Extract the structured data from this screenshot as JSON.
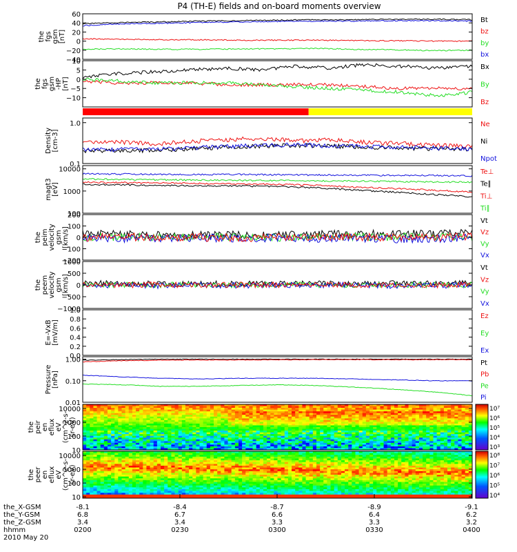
{
  "title": "P4 (TH-E) fields and on-board moments overview",
  "colors": {
    "black": "#000000",
    "red": "#ee1111",
    "green": "#22dd22",
    "blue": "#1111dd",
    "bar_red": "#ff0000",
    "bar_yellow": "#ffff00"
  },
  "panels": [
    {
      "id": "fgs_gsm",
      "ylabel": [
        "the",
        "fgs",
        "gsm",
        "[nT]"
      ],
      "scale": "linear",
      "ylim": [
        -40,
        60
      ],
      "ticks": [
        60,
        40,
        20,
        0,
        -20,
        -40
      ],
      "tick_labels": [
        "60",
        "40",
        "20",
        "0",
        "−20",
        "−40"
      ],
      "legend": [
        {
          "label": "Bt",
          "color": "black"
        },
        {
          "label": "bz",
          "color": "red"
        },
        {
          "label": "by",
          "color": "green"
        },
        {
          "label": "bx",
          "color": "blue"
        }
      ],
      "series": [
        {
          "color": "black",
          "values": [
            38,
            41,
            42,
            44,
            45,
            46,
            47,
            47,
            48,
            48,
            47
          ]
        },
        {
          "color": "blue",
          "values": [
            34,
            38,
            39,
            41,
            42,
            43,
            44,
            44,
            45,
            45,
            44
          ]
        },
        {
          "color": "red",
          "values": [
            5,
            4,
            3,
            3,
            2,
            2,
            2,
            1,
            1,
            0,
            0
          ]
        },
        {
          "color": "green",
          "values": [
            -18,
            -17,
            -18,
            -18,
            -17,
            -17,
            -16,
            -18,
            -19,
            -21,
            -20
          ]
        }
      ]
    },
    {
      "id": "fgs_gsm_hp",
      "ylabel": [
        "the",
        "fgs",
        "gsm",
        "-HP",
        "[nT]"
      ],
      "scale": "linear",
      "ylim": [
        -15,
        10
      ],
      "ticks": [
        10,
        5,
        0,
        -5,
        -10
      ],
      "tick_labels": [
        "10",
        "5",
        "0",
        "−5",
        "−10"
      ],
      "legend": [
        {
          "label": "Bx",
          "color": "black"
        },
        {
          "label": "By",
          "color": "green"
        },
        {
          "label": "Bz",
          "color": "red"
        }
      ],
      "series": [
        {
          "color": "black",
          "values": [
            1,
            3,
            4,
            5,
            6,
            5,
            7,
            6,
            8,
            7,
            6,
            7
          ]
        },
        {
          "color": "red",
          "values": [
            -1,
            -2,
            -2,
            -2,
            -3,
            -3,
            -3,
            -3,
            -4,
            -5,
            -5,
            -5
          ]
        },
        {
          "color": "green",
          "values": [
            0,
            -1,
            -2,
            -2,
            -2,
            -3,
            -4,
            -5,
            -6,
            -7,
            -9,
            -7
          ]
        }
      ]
    },
    {
      "id": "mode_bar",
      "segments": [
        {
          "from": 0.0,
          "to": 0.58,
          "color": "bar_red"
        },
        {
          "from": 0.58,
          "to": 1.0,
          "color": "bar_yellow"
        }
      ]
    },
    {
      "id": "density",
      "ylabel": [
        "Density",
        "[cm-3]"
      ],
      "scale": "log",
      "ylim": [
        0.1,
        1.3
      ],
      "ticks": [
        1.0,
        0.1
      ],
      "tick_labels": [
        "1.0",
        "0.1"
      ],
      "legend": [
        {
          "label": "Ne",
          "color": "red"
        },
        {
          "label": "Ni",
          "color": "black"
        },
        {
          "label": "Npot",
          "color": "blue"
        }
      ],
      "series": [
        {
          "color": "red",
          "values": [
            0.35,
            0.34,
            0.3,
            0.35,
            0.38,
            0.42,
            0.36,
            0.38,
            0.33,
            0.31,
            0.28,
            0.26
          ]
        },
        {
          "color": "black",
          "values": [
            0.2,
            0.21,
            0.21,
            0.23,
            0.25,
            0.27,
            0.28,
            0.27,
            0.25,
            0.24,
            0.23,
            0.22
          ]
        },
        {
          "color": "blue",
          "values": [
            0.22,
            0.22,
            0.23,
            0.24,
            0.26,
            0.28,
            0.29,
            0.27,
            0.26,
            0.25,
            0.24,
            0.23
          ]
        }
      ]
    },
    {
      "id": "magt3",
      "ylabel": [
        "magt3",
        "[eV]"
      ],
      "scale": "log",
      "ylim": [
        100,
        14000
      ],
      "ticks": [
        10000,
        1000,
        100
      ],
      "tick_labels": [
        "10000",
        "1000",
        "100"
      ],
      "legend": [
        {
          "label": "Te⊥",
          "color": "red"
        },
        {
          "label": "Te∥",
          "color": "black"
        },
        {
          "label": "Ti⊥",
          "color": "red"
        },
        {
          "label": "Ti∥",
          "color": "green"
        }
      ],
      "series": [
        {
          "color": "blue",
          "values": [
            6000,
            5800,
            5700,
            5500,
            5600,
            5400,
            5300,
            5200,
            5100,
            5000,
            4800
          ]
        },
        {
          "color": "green",
          "values": [
            3500,
            3300,
            3200,
            3100,
            3000,
            3000,
            2900,
            2800,
            2700,
            2600,
            2500
          ]
        },
        {
          "color": "red",
          "values": [
            2500,
            2400,
            2300,
            2200,
            2100,
            2000,
            1800,
            1500,
            1300,
            1100,
            900
          ]
        },
        {
          "color": "black",
          "values": [
            2000,
            1900,
            1800,
            1700,
            1700,
            1600,
            1400,
            1100,
            900,
            700,
            550
          ]
        }
      ]
    },
    {
      "id": "peim_velocity",
      "ylabel": [
        "the",
        "peim",
        "velocity",
        "gsm",
        "[km/s]"
      ],
      "scale": "linear",
      "ylim": [
        -200,
        200
      ],
      "ticks": [
        200,
        100,
        0,
        -100,
        -200
      ],
      "tick_labels": [
        "200",
        "100",
        "0",
        "−100",
        "−200"
      ],
      "legend": [
        {
          "label": "Vt",
          "color": "black"
        },
        {
          "label": "Vz",
          "color": "red"
        },
        {
          "label": "Vy",
          "color": "green"
        },
        {
          "label": "Vx",
          "color": "blue"
        }
      ],
      "series": [
        {
          "color": "black",
          "values": [
            30,
            25,
            20,
            20,
            25,
            20,
            25,
            30,
            35,
            30,
            40
          ]
        },
        {
          "color": "green",
          "values": [
            5,
            0,
            5,
            0,
            5,
            0,
            0,
            5,
            0,
            5,
            0
          ]
        },
        {
          "color": "blue",
          "values": [
            -5,
            -10,
            -5,
            -5,
            -10,
            -5,
            -10,
            -5,
            -15,
            -10,
            -5
          ]
        },
        {
          "color": "red",
          "values": [
            0,
            5,
            0,
            0,
            -5,
            0,
            5,
            0,
            0,
            0,
            5
          ]
        }
      ]
    },
    {
      "id": "peem_velocity",
      "ylabel": [
        "the",
        "peem",
        "velocity",
        "gsm",
        "[km/s]"
      ],
      "scale": "linear",
      "ylim": [
        -1000,
        1000
      ],
      "ticks": [
        1000,
        500,
        0,
        -500,
        -1000
      ],
      "tick_labels": [
        "1000",
        "500",
        "0",
        "−500",
        "−1000"
      ],
      "legend": [
        {
          "label": "Vt",
          "color": "black"
        },
        {
          "label": "Vz",
          "color": "red"
        },
        {
          "label": "Vy",
          "color": "green"
        },
        {
          "label": "Vx",
          "color": "blue"
        }
      ],
      "series": [
        {
          "color": "black",
          "values": [
            80,
            60,
            50,
            50,
            60,
            50,
            70,
            60,
            70,
            60,
            80
          ]
        },
        {
          "color": "green",
          "values": [
            0,
            10,
            0,
            10,
            0,
            10,
            0,
            10,
            0,
            10,
            0
          ]
        },
        {
          "color": "blue",
          "values": [
            -20,
            -10,
            -30,
            -10,
            -20,
            -10,
            -20,
            -10,
            -30,
            -20,
            -10
          ]
        },
        {
          "color": "red",
          "values": [
            10,
            0,
            10,
            0,
            10,
            0,
            10,
            0,
            10,
            0,
            10
          ]
        }
      ]
    },
    {
      "id": "efield",
      "ylabel": [
        "E=-VxB",
        "[mV/m]"
      ],
      "scale": "linear",
      "ylim": [
        0,
        1.0
      ],
      "ticks": [
        1.0,
        0.8,
        0.6,
        0.4,
        0.2,
        0.0
      ],
      "tick_labels": [
        "1.0",
        "0.8",
        "0.6",
        "0.4",
        "0.2",
        "0.0"
      ],
      "legend": [
        {
          "label": "Ez",
          "color": "red"
        },
        {
          "label": "Ey",
          "color": "green"
        },
        {
          "label": "Ex",
          "color": "blue"
        }
      ],
      "series": []
    },
    {
      "id": "pressure",
      "ylabel": [
        "Pressure",
        "[nPa]"
      ],
      "scale": "log",
      "ylim": [
        0.01,
        1.3
      ],
      "ticks": [
        1.0,
        0.1,
        0.01
      ],
      "tick_labels": [
        "1.00",
        "0.10",
        "0.01"
      ],
      "legend": [
        {
          "label": "Pt",
          "color": "black"
        },
        {
          "label": "Pb",
          "color": "red"
        },
        {
          "label": "Pe",
          "color": "green"
        },
        {
          "label": "Pi",
          "color": "blue"
        }
      ],
      "series": [
        {
          "color": "black",
          "values": [
            0.9,
            0.95,
            1.0,
            1.0,
            1.0,
            1.0,
            1.0,
            1.0,
            1.0,
            1.0,
            1.0
          ]
        },
        {
          "color": "red",
          "values": [
            0.75,
            0.85,
            0.9,
            0.92,
            0.92,
            0.93,
            0.95,
            0.95,
            0.95,
            0.95,
            0.95
          ]
        },
        {
          "color": "blue",
          "values": [
            0.18,
            0.15,
            0.13,
            0.12,
            0.13,
            0.13,
            0.13,
            0.12,
            0.11,
            0.1,
            0.1
          ]
        },
        {
          "color": "green",
          "values": [
            0.07,
            0.065,
            0.055,
            0.055,
            0.06,
            0.065,
            0.06,
            0.05,
            0.04,
            0.03,
            0.02
          ]
        }
      ]
    },
    {
      "id": "peir_eflux",
      "ylabel": [
        "the",
        "peir",
        "en",
        "eflux",
        "eV",
        "(cm^2-s-",
        "sr-eV)"
      ],
      "scale": "log",
      "ylim": [
        10,
        20000
      ],
      "ticks": [
        10000,
        1000,
        100,
        10
      ],
      "tick_labels": [
        "10000",
        "1000",
        "100",
        "10"
      ],
      "colorbar_labels": [
        "10⁷",
        "10⁶",
        "10⁵",
        "10⁴",
        "10³"
      ]
    },
    {
      "id": "peer_eflux",
      "ylabel": [
        "the",
        "peer",
        "en",
        "eflux",
        "eV",
        "(cm^2-s-",
        "sr-eV)"
      ],
      "scale": "log",
      "ylim": [
        8,
        20000
      ],
      "ticks": [
        10000,
        1000,
        100,
        10
      ],
      "tick_labels": [
        "10000",
        "1000",
        "100",
        "10"
      ],
      "colorbar_labels": [
        "10⁸",
        "10⁷",
        "10⁶",
        "10⁵",
        "10⁴"
      ]
    }
  ],
  "xaxis": {
    "rows": [
      {
        "label": "the_X-GSM",
        "values": [
          "-8.1",
          "-8.4",
          "-8.7",
          "-8.9",
          "-9.1"
        ]
      },
      {
        "label": "the_Y-GSM",
        "values": [
          "6.8",
          "6.7",
          "6.6",
          "6.4",
          "6.2"
        ]
      },
      {
        "label": "the_Z-GSM",
        "values": [
          "3.4",
          "3.4",
          "3.3",
          "3.3",
          "3.2"
        ]
      },
      {
        "label": "hhmm",
        "values": [
          "0200",
          "0230",
          "0300",
          "0330",
          "0400"
        ]
      }
    ],
    "date": "2010 May 20"
  },
  "chart_data": {
    "type": "line",
    "title": "P4 (TH-E) fields and on-board moments overview",
    "x": [
      "0200",
      "0230",
      "0300",
      "0330",
      "0400"
    ],
    "xlabel": "hhmm",
    "date": "2010 May 20",
    "panels": [
      "the fgs gsm [nT]",
      "the fgs gsm -HP [nT]",
      "Density [cm-3]",
      "magt3 [eV]",
      "the peim velocity gsm [km/s]",
      "the peem velocity gsm [km/s]",
      "E=-VxB [mV/m]",
      "Pressure [nPa]",
      "the peir en eflux",
      "the peer en eflux"
    ]
  }
}
